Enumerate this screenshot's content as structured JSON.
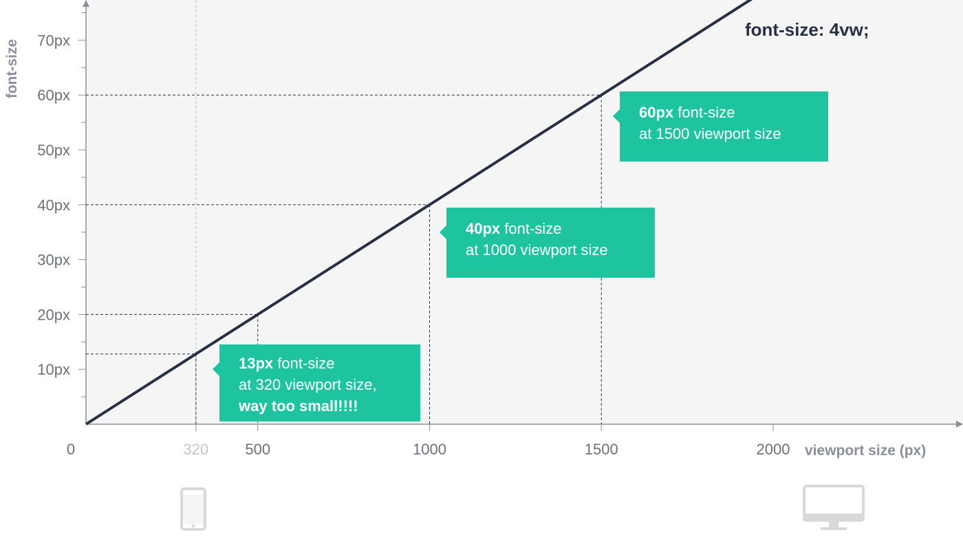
{
  "chart_data": {
    "type": "line",
    "xlabel": "viewport size (px)",
    "ylabel": "font-size",
    "xlim": [
      0,
      2000
    ],
    "ylim": [
      0,
      75
    ],
    "x_ticks": [
      "0",
      "320",
      "500",
      "1000",
      "1500",
      "2000"
    ],
    "y_ticks": [
      "10px",
      "20px",
      "30px",
      "40px",
      "50px",
      "60px",
      "70px"
    ],
    "series": [
      {
        "x": [
          0,
          320,
          500,
          1000,
          1500,
          1950
        ],
        "y": [
          0,
          12.8,
          20,
          40,
          60,
          78
        ]
      }
    ],
    "formula": "font-size: 4vw;",
    "highlight_x_tick": "320",
    "callouts": [
      {
        "bold": "13px",
        "text": "font-size",
        "line2": "at 320 viewport size,",
        "line3": "way too small!!!!"
      },
      {
        "bold": "40px",
        "text": "font-size",
        "line2": "at 1000 viewport size"
      },
      {
        "bold": "60px",
        "text": "font-size",
        "line2": "at 1500 viewport size"
      }
    ],
    "colors": {
      "line": "#283044",
      "callout": "#1ec3a0",
      "axis": "#8a8f99",
      "plot_bg": "#f5f5f6",
      "device": "#d8d9db"
    },
    "icons": [
      "phone-icon",
      "desktop-monitor-icon"
    ]
  }
}
